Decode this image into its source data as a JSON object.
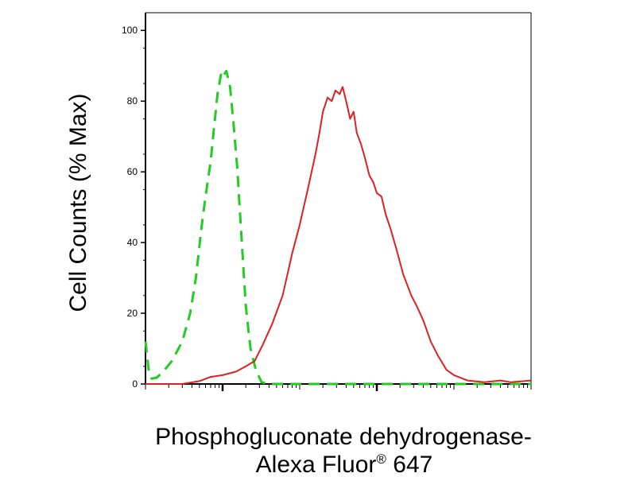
{
  "chart_data": {
    "type": "line",
    "title": "",
    "xlabel_line1": "Phosphogluconate dehydrogenase-",
    "xlabel_line2_main": "Alexa Fluor",
    "xlabel_line2_reg": "®",
    "xlabel_line2_tail": " 647",
    "ylabel": "Cell Counts (% Max)",
    "xscale": "log",
    "xlim": [
      0.1,
      10000
    ],
    "ylim": [
      0,
      105
    ],
    "yticks": [
      {
        "value": 0,
        "label": "0"
      },
      {
        "value": 20,
        "label": "20"
      },
      {
        "value": 40,
        "label": "40"
      },
      {
        "value": 60,
        "label": "60"
      },
      {
        "value": 80,
        "label": "80"
      },
      {
        "value": 100,
        "label": "100"
      }
    ],
    "xmajor_ticks": [
      1,
      100,
      10000
    ],
    "grid": false,
    "legend": "none",
    "series": [
      {
        "color": "#22cc22",
        "style": "dashed",
        "points": [
          [
            0.1,
            12
          ],
          [
            0.11,
            4
          ],
          [
            0.12,
            1.5
          ],
          [
            0.14,
            1.8
          ],
          [
            0.17,
            3.5
          ],
          [
            0.22,
            6.5
          ],
          [
            0.3,
            12
          ],
          [
            0.38,
            20
          ],
          [
            0.45,
            30
          ],
          [
            0.53,
            44
          ],
          [
            0.6,
            53
          ],
          [
            0.7,
            63
          ],
          [
            0.77,
            72
          ],
          [
            0.86,
            82
          ],
          [
            0.97,
            88.5
          ],
          [
            1.04,
            87.5
          ],
          [
            1.12,
            88.5
          ],
          [
            1.25,
            84
          ],
          [
            1.38,
            74
          ],
          [
            1.55,
            61
          ],
          [
            1.75,
            42
          ],
          [
            2.0,
            22
          ],
          [
            2.3,
            10
          ],
          [
            2.7,
            4
          ],
          [
            3.2,
            0.5
          ],
          [
            4,
            0
          ],
          [
            10000,
            0
          ]
        ]
      },
      {
        "color": "#e02020",
        "style": "solid",
        "points": [
          [
            0.1,
            0
          ],
          [
            0.3,
            0
          ],
          [
            0.5,
            0.8
          ],
          [
            0.7,
            2
          ],
          [
            1.0,
            2.5
          ],
          [
            1.5,
            3.5
          ],
          [
            2.0,
            5
          ],
          [
            2.6,
            6.5
          ],
          [
            3.3,
            11
          ],
          [
            4.4,
            17
          ],
          [
            6.0,
            25
          ],
          [
            8.0,
            37
          ],
          [
            10,
            45
          ],
          [
            13,
            56
          ],
          [
            16,
            65
          ],
          [
            18,
            71
          ],
          [
            20,
            77
          ],
          [
            23,
            81
          ],
          [
            26,
            80
          ],
          [
            29,
            83
          ],
          [
            33,
            82
          ],
          [
            36,
            84
          ],
          [
            40,
            80
          ],
          [
            45,
            75
          ],
          [
            50,
            77
          ],
          [
            55,
            71
          ],
          [
            62,
            68
          ],
          [
            70,
            64
          ],
          [
            80,
            59
          ],
          [
            90,
            57
          ],
          [
            100,
            54
          ],
          [
            115,
            53
          ],
          [
            130,
            48
          ],
          [
            150,
            44
          ],
          [
            180,
            38
          ],
          [
            220,
            31
          ],
          [
            280,
            25
          ],
          [
            330,
            22
          ],
          [
            400,
            18
          ],
          [
            500,
            12
          ],
          [
            620,
            8
          ],
          [
            800,
            4
          ],
          [
            1000,
            2.5
          ],
          [
            1500,
            1
          ],
          [
            2500,
            0.5
          ],
          [
            4000,
            1
          ],
          [
            5500,
            0.5
          ],
          [
            10000,
            1
          ]
        ]
      }
    ]
  }
}
